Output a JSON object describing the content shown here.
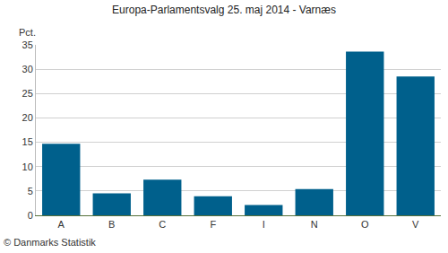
{
  "chart_data": {
    "type": "bar",
    "title": "Europa-Parlamentsvalg 25. maj 2014 - Varnæs",
    "ylabel": "Pct.",
    "source": "© Danmarks Statistik",
    "categories": [
      "A",
      "B",
      "C",
      "F",
      "I",
      "N",
      "O",
      "V"
    ],
    "values": [
      14.7,
      4.5,
      7.3,
      3.9,
      2.1,
      5.4,
      33.6,
      28.5
    ],
    "color": "#00608c",
    "ylim": [
      0,
      35
    ],
    "yticks": [
      0,
      5,
      10,
      15,
      20,
      25,
      30,
      35
    ],
    "grid": true
  }
}
